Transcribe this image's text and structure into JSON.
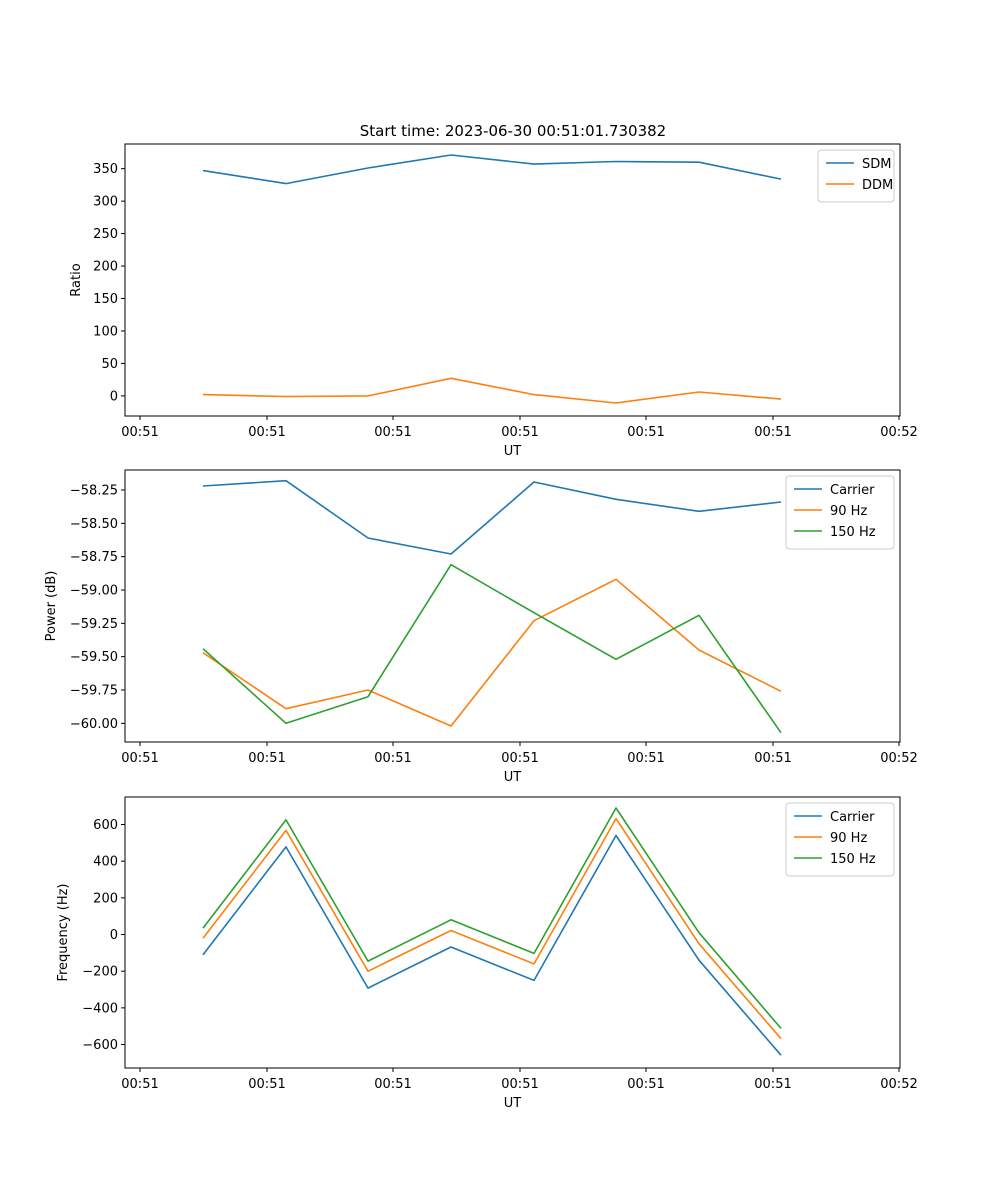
{
  "figure": {
    "title": "Start time: 2023-06-30 00:51:01.730382"
  },
  "chart_data": [
    {
      "type": "line",
      "xlabel": "UT",
      "ylabel": "Ratio",
      "x_tick_labels": [
        "00:51",
        "00:51",
        "00:51",
        "00:51",
        "00:51",
        "00:51",
        "00:51"
      ],
      "x_end_tick_label": "00:52",
      "y_ticks": [
        0,
        50,
        100,
        150,
        200,
        250,
        300,
        350
      ],
      "ylim": [
        -31,
        388
      ],
      "legend_position": "upper-right",
      "series": [
        {
          "name": "SDM",
          "color": "#1f77b4",
          "values": [
            347,
            327,
            351,
            371,
            357,
            361,
            360,
            334
          ]
        },
        {
          "name": "DDM",
          "color": "#ff7f0e",
          "values": [
            2,
            -1,
            0,
            27,
            2,
            -11,
            6,
            -5
          ]
        }
      ]
    },
    {
      "type": "line",
      "xlabel": "UT",
      "ylabel": "Power (dB)",
      "x_tick_labels": [
        "00:51",
        "00:51",
        "00:51",
        "00:51",
        "00:51",
        "00:51",
        "00:51"
      ],
      "x_end_tick_label": "00:52",
      "y_ticks": [
        -60.0,
        -59.75,
        -59.5,
        -59.25,
        -59.0,
        -58.75,
        -58.5,
        -58.25
      ],
      "y_tick_labels": [
        "−60.00",
        "−59.75",
        "−59.50",
        "−59.25",
        "−59.00",
        "−58.75",
        "−58.50",
        "−58.25"
      ],
      "ylim": [
        -60.14,
        -58.1
      ],
      "legend_position": "upper-right",
      "series": [
        {
          "name": "Carrier",
          "color": "#1f77b4",
          "values": [
            -58.22,
            -58.18,
            -58.61,
            -58.73,
            -58.19,
            -58.32,
            -58.41,
            -58.34
          ]
        },
        {
          "name": "90 Hz",
          "color": "#ff7f0e",
          "values": [
            -59.47,
            -59.89,
            -59.75,
            -60.02,
            -59.23,
            -58.92,
            -59.45,
            -59.76
          ]
        },
        {
          "name": "150 Hz",
          "color": "#2ca02c",
          "values": [
            -59.44,
            -60.0,
            -59.8,
            -58.81,
            -59.17,
            -59.52,
            -59.19,
            -60.07
          ]
        }
      ]
    },
    {
      "type": "line",
      "xlabel": "UT",
      "ylabel": "Frequency (Hz)",
      "x_tick_labels": [
        "00:51",
        "00:51",
        "00:51",
        "00:51",
        "00:51",
        "00:51",
        "00:51"
      ],
      "x_end_tick_label": "00:52",
      "y_ticks": [
        -600,
        -400,
        -200,
        0,
        200,
        400,
        600
      ],
      "y_tick_labels": [
        "−600",
        "−400",
        "−200",
        "0",
        "200",
        "400",
        "600"
      ],
      "ylim": [
        -728,
        750
      ],
      "legend_position": "upper-right",
      "series": [
        {
          "name": "Carrier",
          "color": "#1f77b4",
          "values": [
            -110,
            478,
            -292,
            -68,
            -250,
            540,
            -140,
            -658
          ]
        },
        {
          "name": "90 Hz",
          "color": "#ff7f0e",
          "values": [
            -20,
            568,
            -200,
            22,
            -160,
            632,
            -50,
            -568
          ]
        },
        {
          "name": "150 Hz",
          "color": "#2ca02c",
          "values": [
            35,
            625,
            -145,
            80,
            -103,
            690,
            10,
            -512
          ]
        }
      ]
    }
  ]
}
